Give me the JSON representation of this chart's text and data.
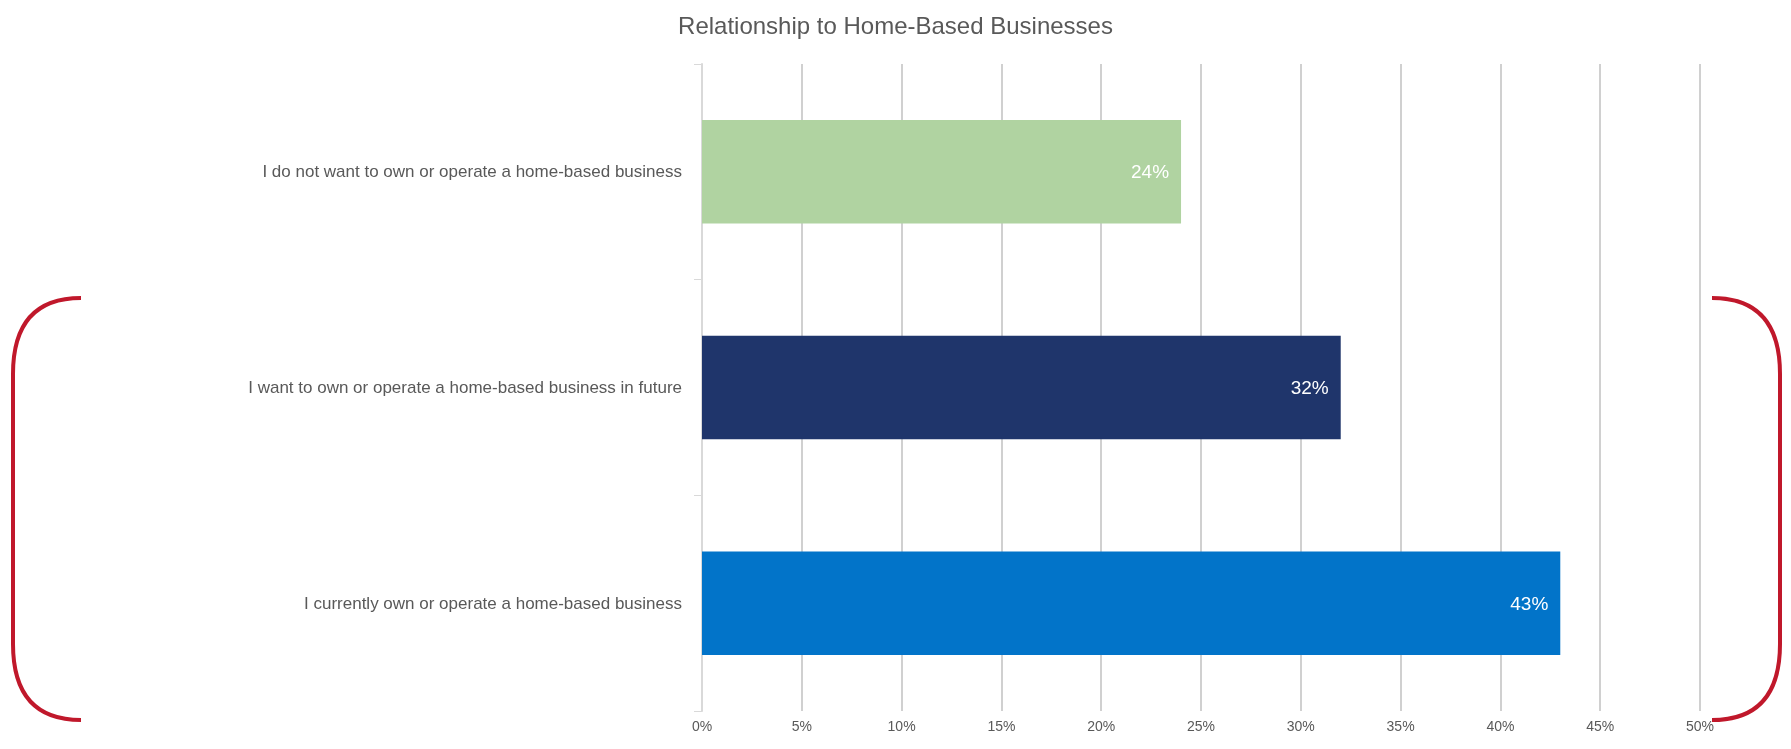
{
  "chart_data": {
    "type": "bar",
    "orientation": "horizontal",
    "title": "Relationship to Home-Based Businesses",
    "categories": [
      "I do not want to own or operate a home-based business",
      "I want to own or operate a home-based business in future",
      "I currently own or operate a home-based business"
    ],
    "values": [
      24,
      32,
      43
    ],
    "colors": [
      "#b0d3a1",
      "#1f356b",
      "#0274c9"
    ],
    "value_labels": [
      "24%",
      "32%",
      "43%"
    ],
    "xlim": [
      0,
      50
    ],
    "xticks": [
      {
        "value": 0,
        "label": "0%"
      },
      {
        "value": 5,
        "label": "5%"
      },
      {
        "value": 10,
        "label": "10%"
      },
      {
        "value": 15,
        "label": "15%"
      },
      {
        "value": 20,
        "label": "20%"
      },
      {
        "value": 25,
        "label": "25%"
      },
      {
        "value": 30,
        "label": "30%"
      },
      {
        "value": 35,
        "label": "35%"
      },
      {
        "value": 40,
        "label": "40%"
      },
      {
        "value": 45,
        "label": "45%"
      },
      {
        "value": 50,
        "label": "50%"
      }
    ],
    "grid": "x"
  }
}
